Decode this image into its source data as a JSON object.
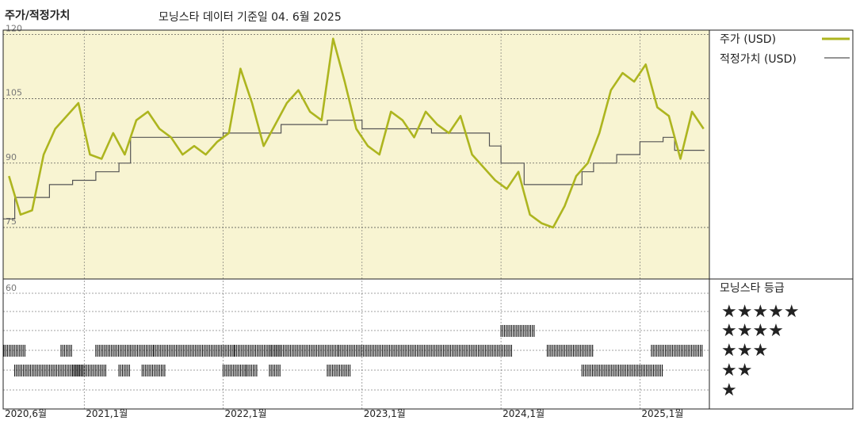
{
  "header": {
    "section_title": "주가/적정가치",
    "subtitle": "모닝스타 데이터 기준일 04. 6월 2025"
  },
  "legend": {
    "price_label": "주가 (USD)",
    "fair_value_label": "적정가치 (USD)",
    "rating_title": "모닝스타 등급",
    "star_rows": [
      "★★★★★",
      "★★★★",
      "★★★",
      "★★",
      "★"
    ]
  },
  "colors": {
    "price_line": "#adb51f",
    "fair_value_line": "#555555",
    "panel_background": "#f8f4d2",
    "rating_bars": "#111111"
  },
  "chart_data": [
    {
      "type": "line",
      "title": "",
      "xlabel": "",
      "ylabel": "",
      "x_tick_labels": [
        "2020,6월",
        "2021,1월",
        "2022,1월",
        "2023,1월",
        "2024,1월",
        "2025,1월"
      ],
      "x_tick_dates": [
        "2020-06",
        "2021-01",
        "2022-01",
        "2023-01",
        "2024-01",
        "2025-01"
      ],
      "x_range": [
        "2020-06",
        "2025-06"
      ],
      "y_ticks": [
        75,
        90,
        105,
        120
      ],
      "ylim": [
        63,
        121
      ],
      "grid": true,
      "legend_position": "right",
      "series": [
        {
          "name": "주가 (USD)",
          "points": [
            [
              "2020-06",
              87
            ],
            [
              "2020-07",
              78
            ],
            [
              "2020-08",
              79
            ],
            [
              "2020-09",
              92
            ],
            [
              "2020-10",
              98
            ],
            [
              "2020-11",
              101
            ],
            [
              "2020-12",
              104
            ],
            [
              "2021-01",
              92
            ],
            [
              "2021-02",
              91
            ],
            [
              "2021-03",
              97
            ],
            [
              "2021-04",
              92
            ],
            [
              "2021-05",
              100
            ],
            [
              "2021-06",
              102
            ],
            [
              "2021-07",
              98
            ],
            [
              "2021-08",
              96
            ],
            [
              "2021-09",
              92
            ],
            [
              "2021-10",
              94
            ],
            [
              "2021-11",
              92
            ],
            [
              "2021-12",
              95
            ],
            [
              "2022-01",
              97
            ],
            [
              "2022-02",
              112
            ],
            [
              "2022-03",
              104
            ],
            [
              "2022-04",
              94
            ],
            [
              "2022-05",
              99
            ],
            [
              "2022-06",
              104
            ],
            [
              "2022-07",
              107
            ],
            [
              "2022-08",
              102
            ],
            [
              "2022-09",
              100
            ],
            [
              "2022-10",
              119
            ],
            [
              "2022-11",
              109
            ],
            [
              "2022-12",
              98
            ],
            [
              "2023-01",
              94
            ],
            [
              "2023-02",
              92
            ],
            [
              "2023-03",
              102
            ],
            [
              "2023-04",
              100
            ],
            [
              "2023-05",
              96
            ],
            [
              "2023-06",
              102
            ],
            [
              "2023-07",
              99
            ],
            [
              "2023-08",
              97
            ],
            [
              "2023-09",
              101
            ],
            [
              "2023-10",
              92
            ],
            [
              "2023-11",
              89
            ],
            [
              "2023-12",
              86
            ],
            [
              "2024-01",
              84
            ],
            [
              "2024-02",
              88
            ],
            [
              "2024-03",
              78
            ],
            [
              "2024-04",
              76
            ],
            [
              "2024-05",
              75
            ],
            [
              "2024-06",
              80
            ],
            [
              "2024-07",
              87
            ],
            [
              "2024-08",
              90
            ],
            [
              "2024-09",
              97
            ],
            [
              "2024-10",
              107
            ],
            [
              "2024-11",
              111
            ],
            [
              "2024-12",
              109
            ],
            [
              "2025-01",
              113
            ],
            [
              "2025-02",
              103
            ],
            [
              "2025-03",
              101
            ],
            [
              "2025-04",
              91
            ],
            [
              "2025-05",
              102
            ],
            [
              "2025-06",
              98
            ]
          ]
        },
        {
          "name": "적정가치 (USD)",
          "step": true,
          "points": [
            [
              "2020-06",
              77
            ],
            [
              "2020-07",
              82
            ],
            [
              "2020-10",
              85
            ],
            [
              "2020-12",
              86
            ],
            [
              "2021-02",
              88
            ],
            [
              "2021-04",
              90
            ],
            [
              "2021-05",
              96
            ],
            [
              "2022-01",
              97
            ],
            [
              "2022-06",
              99
            ],
            [
              "2022-10",
              100
            ],
            [
              "2023-01",
              98
            ],
            [
              "2023-07",
              97
            ],
            [
              "2023-12",
              94
            ],
            [
              "2024-01",
              90
            ],
            [
              "2024-03",
              85
            ],
            [
              "2024-08",
              88
            ],
            [
              "2024-09",
              90
            ],
            [
              "2024-11",
              92
            ],
            [
              "2025-01",
              95
            ],
            [
              "2025-03",
              96
            ],
            [
              "2025-04",
              93
            ],
            [
              "2025-06",
              93
            ]
          ]
        }
      ]
    },
    {
      "type": "timeline",
      "title": "",
      "ylabel": "",
      "y_tick_labels": [
        "60"
      ],
      "rating_levels": [
        5,
        4,
        3,
        2,
        1
      ],
      "segments": [
        {
          "stars": 3,
          "start": "2020-06",
          "end": "2020-07"
        },
        {
          "stars": 2,
          "start": "2020-07",
          "end": "2020-12"
        },
        {
          "stars": 3,
          "start": "2020-11",
          "end": "2020-11"
        },
        {
          "stars": 2,
          "start": "2020-12",
          "end": "2021-02"
        },
        {
          "stars": 3,
          "start": "2021-02",
          "end": "2021-04"
        },
        {
          "stars": 2,
          "start": "2021-04",
          "end": "2021-04"
        },
        {
          "stars": 3,
          "start": "2021-05",
          "end": "2021-06"
        },
        {
          "stars": 2,
          "start": "2021-06",
          "end": "2021-07"
        },
        {
          "stars": 3,
          "start": "2021-07",
          "end": "2022-01"
        },
        {
          "stars": 2,
          "start": "2022-01",
          "end": "2022-02"
        },
        {
          "stars": 3,
          "start": "2022-02",
          "end": "2022-05"
        },
        {
          "stars": 2,
          "start": "2022-03",
          "end": "2022-03"
        },
        {
          "stars": 2,
          "start": "2022-05",
          "end": "2022-05"
        },
        {
          "stars": 3,
          "start": "2022-05",
          "end": "2022-10"
        },
        {
          "stars": 2,
          "start": "2022-10",
          "end": "2022-11"
        },
        {
          "stars": 3,
          "start": "2022-11",
          "end": "2024-01"
        },
        {
          "stars": 4,
          "start": "2024-01",
          "end": "2024-03"
        },
        {
          "stars": 3,
          "start": "2024-05",
          "end": "2024-08"
        },
        {
          "stars": 2,
          "start": "2024-08",
          "end": "2025-02"
        },
        {
          "stars": 3,
          "start": "2025-02",
          "end": "2025-06"
        }
      ]
    }
  ]
}
